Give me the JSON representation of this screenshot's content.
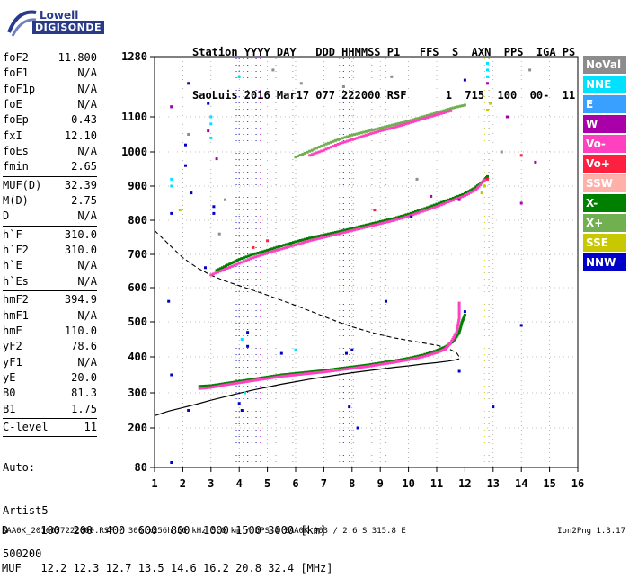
{
  "logo": {
    "line1": "Lowell",
    "line2": "DIGISONDE"
  },
  "header": {
    "line1": "Station YYYY DAY   DDD HHMMSS P1   FFS  S  AXN  PPS  IGA PS",
    "line2": "SaoLuis 2016 Mar17 077 222000 RSF      1  715  100  00-  11"
  },
  "params": [
    {
      "k": "foF2",
      "v": "11.800"
    },
    {
      "k": "foF1",
      "v": "N/A"
    },
    {
      "k": "foF1p",
      "v": "N/A"
    },
    {
      "k": "foE",
      "v": "N/A"
    },
    {
      "k": "foEp",
      "v": "0.43"
    },
    {
      "k": "fxI",
      "v": "12.10"
    },
    {
      "k": "foEs",
      "v": "N/A"
    },
    {
      "k": "fmin",
      "v": "2.65"
    },
    {
      "k": "MUF(D)",
      "v": "32.39",
      "sep": true
    },
    {
      "k": "M(D)",
      "v": "2.75"
    },
    {
      "k": "D",
      "v": "N/A"
    },
    {
      "k": "h`F",
      "v": "310.0",
      "sep": true
    },
    {
      "k": "h`F2",
      "v": "310.0"
    },
    {
      "k": "h`E",
      "v": "N/A"
    },
    {
      "k": "h`Es",
      "v": "N/A"
    },
    {
      "k": "hmF2",
      "v": "394.9",
      "sep": true
    },
    {
      "k": "hmF1",
      "v": "N/A"
    },
    {
      "k": "hmE",
      "v": "110.0"
    },
    {
      "k": "yF2",
      "v": "78.6"
    },
    {
      "k": "yF1",
      "v": "N/A"
    },
    {
      "k": "yE",
      "v": "20.0"
    },
    {
      "k": "B0",
      "v": "81.3"
    },
    {
      "k": "B1",
      "v": "1.75"
    },
    {
      "k": "C-level",
      "v": "11",
      "sep": true
    }
  ],
  "auto": {
    "line1": "Auto:",
    "line2": "Artist5",
    "line3": "500200"
  },
  "legend": [
    {
      "label": "NoVal",
      "color": "#8c8c8c"
    },
    {
      "label": "NNE",
      "color": "#00e0ff"
    },
    {
      "label": "E",
      "color": "#3aa0ff"
    },
    {
      "label": "W",
      "color": "#aa00aa"
    },
    {
      "label": "Vo-",
      "color": "#ff40c0"
    },
    {
      "label": "Vo+",
      "color": "#ff2040"
    },
    {
      "label": "SSW",
      "color": "#ffb0a8"
    },
    {
      "label": "X-",
      "color": "#008000"
    },
    {
      "label": "X+",
      "color": "#70b050"
    },
    {
      "label": "SSE",
      "color": "#c8c800"
    },
    {
      "label": "NNW",
      "color": "#0000c8"
    }
  ],
  "footer": {
    "line1": "D     100  200  400  600  800  1000 1500 3000 [km]",
    "line2": "MUF   12.2 12.3 12.7 13.5 14.6 16.2 20.8 32.4 [MHz]"
  },
  "footnote": "SAA0K_2016077222000.RSF / 300fx256h 50 kHz 5.0 km / DPS-4 SAA0K 903 / 2.6 S 315.8 E",
  "version": "Ion2Png 1.3.17",
  "chart_data": {
    "type": "scatter",
    "xlim": [
      1,
      16
    ],
    "ylim": [
      80,
      1280
    ],
    "x_ticks": [
      1,
      2,
      3,
      4,
      5,
      6,
      7,
      8,
      9,
      10,
      11,
      12,
      13,
      14,
      15,
      16
    ],
    "y_ticks": [
      80,
      200,
      300,
      400,
      500,
      600,
      700,
      800,
      900,
      1000,
      1100,
      1280
    ],
    "grid": "dotted",
    "series": [
      {
        "color": "#008000",
        "points": [
          [
            2.6,
            318
          ],
          [
            3,
            320
          ],
          [
            3.5,
            326
          ],
          [
            4,
            332
          ],
          [
            4.5,
            338
          ],
          [
            5,
            344
          ],
          [
            5.5,
            350
          ],
          [
            6,
            354
          ],
          [
            6.5,
            358
          ],
          [
            7,
            362
          ],
          [
            7.5,
            367
          ],
          [
            8,
            372
          ],
          [
            8.5,
            377
          ],
          [
            9,
            383
          ],
          [
            9.5,
            389
          ],
          [
            10,
            396
          ],
          [
            10.5,
            405
          ],
          [
            11,
            418
          ],
          [
            11.3,
            428
          ],
          [
            11.6,
            445
          ],
          [
            11.8,
            470
          ],
          [
            11.9,
            500
          ],
          [
            12,
            520
          ]
        ]
      },
      {
        "color": "#ff40c0",
        "points": [
          [
            2.6,
            312
          ],
          [
            3,
            315
          ],
          [
            3.5,
            322
          ],
          [
            4,
            328
          ],
          [
            4.5,
            334
          ],
          [
            5,
            340
          ],
          [
            5.5,
            346
          ],
          [
            6,
            350
          ],
          [
            6.5,
            354
          ],
          [
            7,
            358
          ],
          [
            7.5,
            363
          ],
          [
            8,
            368
          ],
          [
            8.5,
            373
          ],
          [
            9,
            379
          ],
          [
            9.5,
            385
          ],
          [
            10,
            392
          ],
          [
            10.5,
            400
          ],
          [
            11,
            412
          ],
          [
            11.3,
            422
          ],
          [
            11.5,
            440
          ],
          [
            11.7,
            470
          ],
          [
            11.8,
            510
          ],
          [
            11.8,
            555
          ]
        ]
      },
      {
        "color": "#008000",
        "points": [
          [
            3.2,
            652
          ],
          [
            3.6,
            668
          ],
          [
            4,
            685
          ],
          [
            4.5,
            700
          ],
          [
            5,
            712
          ],
          [
            5.5,
            725
          ],
          [
            6,
            737
          ],
          [
            6.5,
            748
          ],
          [
            7,
            757
          ],
          [
            7.5,
            766
          ],
          [
            8,
            776
          ],
          [
            8.5,
            786
          ],
          [
            9,
            796
          ],
          [
            9.5,
            806
          ],
          [
            10,
            818
          ],
          [
            10.5,
            832
          ],
          [
            11,
            847
          ],
          [
            11.5,
            862
          ],
          [
            12,
            878
          ],
          [
            12.3,
            892
          ],
          [
            12.6,
            910
          ],
          [
            12.8,
            928
          ]
        ]
      },
      {
        "color": "#ff40c0",
        "points": [
          [
            3,
            638
          ],
          [
            3.5,
            655
          ],
          [
            4,
            673
          ],
          [
            4.5,
            690
          ],
          [
            5,
            704
          ],
          [
            5.5,
            716
          ],
          [
            6,
            728
          ],
          [
            6.5,
            740
          ],
          [
            7,
            750
          ],
          [
            7.5,
            760
          ],
          [
            8,
            770
          ],
          [
            8.5,
            780
          ],
          [
            9,
            790
          ],
          [
            9.5,
            800
          ],
          [
            10,
            812
          ],
          [
            10.5,
            826
          ],
          [
            11,
            840
          ],
          [
            11.5,
            856
          ],
          [
            12,
            872
          ],
          [
            12.4,
            890
          ],
          [
            12.7,
            918
          ]
        ]
      },
      {
        "color": "#70b050",
        "points": [
          [
            6,
            985
          ],
          [
            6.5,
            1002
          ],
          [
            7,
            1020
          ],
          [
            7.5,
            1035
          ],
          [
            8,
            1048
          ],
          [
            8.5,
            1058
          ],
          [
            9,
            1068
          ],
          [
            9.5,
            1078
          ],
          [
            10,
            1088
          ],
          [
            10.5,
            1100
          ],
          [
            11,
            1112
          ],
          [
            11.5,
            1125
          ],
          [
            12,
            1135
          ]
        ]
      },
      {
        "color": "#ff40c0",
        "points": [
          [
            6.5,
            990
          ],
          [
            7,
            1005
          ],
          [
            7.5,
            1022
          ],
          [
            8,
            1035
          ],
          [
            8.5,
            1048
          ],
          [
            9,
            1060
          ],
          [
            9.5,
            1070
          ],
          [
            10,
            1082
          ],
          [
            10.5,
            1094
          ],
          [
            11,
            1106
          ],
          [
            11.5,
            1118
          ]
        ]
      },
      {
        "color": "#00e0ff",
        "points": [
          [
            3,
            1100
          ],
          [
            3,
            1080
          ],
          [
            3,
            1040
          ],
          [
            4,
            1220
          ],
          [
            1.6,
            920
          ],
          [
            1.6,
            900
          ],
          [
            4.1,
            450
          ],
          [
            4.2,
            300
          ],
          [
            6,
            420
          ],
          [
            12.8,
            1260
          ],
          [
            12.8,
            1240
          ],
          [
            12.8,
            1220
          ]
        ]
      },
      {
        "color": "#0000c8",
        "points": [
          [
            1.6,
            1130
          ],
          [
            1.6,
            820
          ],
          [
            1.5,
            560
          ],
          [
            1.6,
            350
          ],
          [
            2.1,
            1020
          ],
          [
            2.1,
            960
          ],
          [
            2.2,
            250
          ],
          [
            2.8,
            660
          ],
          [
            2.9,
            1140
          ],
          [
            3.1,
            840
          ],
          [
            3.1,
            820
          ],
          [
            4,
            270
          ],
          [
            4.1,
            250
          ],
          [
            4.3,
            470
          ],
          [
            4.3,
            430
          ],
          [
            5.5,
            410
          ],
          [
            7.9,
            260
          ],
          [
            7.8,
            410
          ],
          [
            8,
            420
          ],
          [
            8.2,
            200
          ],
          [
            9.2,
            560
          ],
          [
            10.1,
            810
          ],
          [
            11.8,
            360
          ],
          [
            12,
            1210
          ],
          [
            12,
            530
          ],
          [
            13,
            260
          ],
          [
            14,
            490
          ],
          [
            1.6,
            95
          ],
          [
            2.3,
            880
          ],
          [
            2.2,
            1200
          ]
        ]
      },
      {
        "color": "#aa00aa",
        "points": [
          [
            1.6,
            1130
          ],
          [
            2.9,
            1060
          ],
          [
            3.2,
            980
          ],
          [
            10.8,
            870
          ],
          [
            11.8,
            860
          ],
          [
            12.8,
            1200
          ],
          [
            13.5,
            1100
          ],
          [
            14,
            850
          ],
          [
            14.5,
            970
          ]
        ]
      },
      {
        "color": "#ff2040",
        "points": [
          [
            4.5,
            720
          ],
          [
            5,
            740
          ],
          [
            8.8,
            830
          ],
          [
            12.8,
            920
          ],
          [
            14,
            990
          ]
        ]
      },
      {
        "color": "#c8c800",
        "points": [
          [
            12.6,
            880
          ],
          [
            12.7,
            900
          ],
          [
            12.8,
            1120
          ],
          [
            12.9,
            1140
          ],
          [
            1.9,
            830
          ]
        ]
      },
      {
        "color": "#8c8c8c",
        "points": [
          [
            2.2,
            1050
          ],
          [
            3.3,
            760
          ],
          [
            3.5,
            860
          ],
          [
            5.2,
            1240
          ],
          [
            6.2,
            1200
          ],
          [
            7.7,
            1190
          ],
          [
            9.4,
            1220
          ],
          [
            10.3,
            920
          ],
          [
            13.3,
            1000
          ],
          [
            14.3,
            1240
          ]
        ]
      }
    ],
    "vertical_bands": [
      {
        "x": 3.9,
        "color": "#0000c8"
      },
      {
        "x": 4.0,
        "color": "#0000c8"
      },
      {
        "x": 4.15,
        "color": "#aa00aa"
      },
      {
        "x": 4.3,
        "color": "#0000c8"
      },
      {
        "x": 4.45,
        "color": "#3aa0ff"
      },
      {
        "x": 4.6,
        "color": "#0000c8"
      },
      {
        "x": 4.75,
        "color": "#aa00aa"
      },
      {
        "x": 5.3,
        "color": "#8c8c8c"
      },
      {
        "x": 5.9,
        "color": "#8c8c8c"
      },
      {
        "x": 7.55,
        "color": "#8c8c8c"
      },
      {
        "x": 7.7,
        "color": "#0000c8"
      },
      {
        "x": 7.9,
        "color": "#aa00aa"
      },
      {
        "x": 8.05,
        "color": "#8c8c8c"
      },
      {
        "x": 8.7,
        "color": "#8c8c8c"
      },
      {
        "x": 9.2,
        "color": "#8c8c8c"
      },
      {
        "x": 12.7,
        "color": "#c8c800"
      },
      {
        "x": 12.85,
        "color": "#8c8c8c"
      }
    ],
    "profile_solid": [
      [
        1,
        235
      ],
      [
        1.5,
        248
      ],
      [
        2,
        258
      ],
      [
        2.5,
        268
      ],
      [
        3,
        279
      ],
      [
        3.5,
        289
      ],
      [
        4,
        299
      ],
      [
        4.5,
        308
      ],
      [
        5,
        316
      ],
      [
        5.5,
        324
      ],
      [
        6,
        331
      ],
      [
        6.5,
        338
      ],
      [
        7,
        344
      ],
      [
        7.5,
        350
      ],
      [
        8,
        356
      ],
      [
        8.5,
        361
      ],
      [
        9,
        366
      ],
      [
        9.5,
        371
      ],
      [
        10,
        375
      ],
      [
        10.5,
        380
      ],
      [
        11,
        384
      ],
      [
        11.4,
        388
      ],
      [
        11.7,
        392
      ],
      [
        11.8,
        395
      ]
    ],
    "profile_dashed": [
      [
        1,
        770
      ],
      [
        1.5,
        730
      ],
      [
        2,
        690
      ],
      [
        2.5,
        660
      ],
      [
        3,
        637
      ],
      [
        3.5,
        620
      ],
      [
        4,
        606
      ],
      [
        4.5,
        592
      ],
      [
        5,
        578
      ],
      [
        5.5,
        563
      ],
      [
        6,
        548
      ],
      [
        6.5,
        532
      ],
      [
        7,
        516
      ],
      [
        7.5,
        500
      ],
      [
        8,
        486
      ],
      [
        8.5,
        474
      ],
      [
        9,
        463
      ],
      [
        9.5,
        454
      ],
      [
        10,
        447
      ],
      [
        10.5,
        440
      ],
      [
        11,
        433
      ],
      [
        11.4,
        424
      ],
      [
        11.7,
        412
      ],
      [
        11.8,
        400
      ]
    ]
  }
}
